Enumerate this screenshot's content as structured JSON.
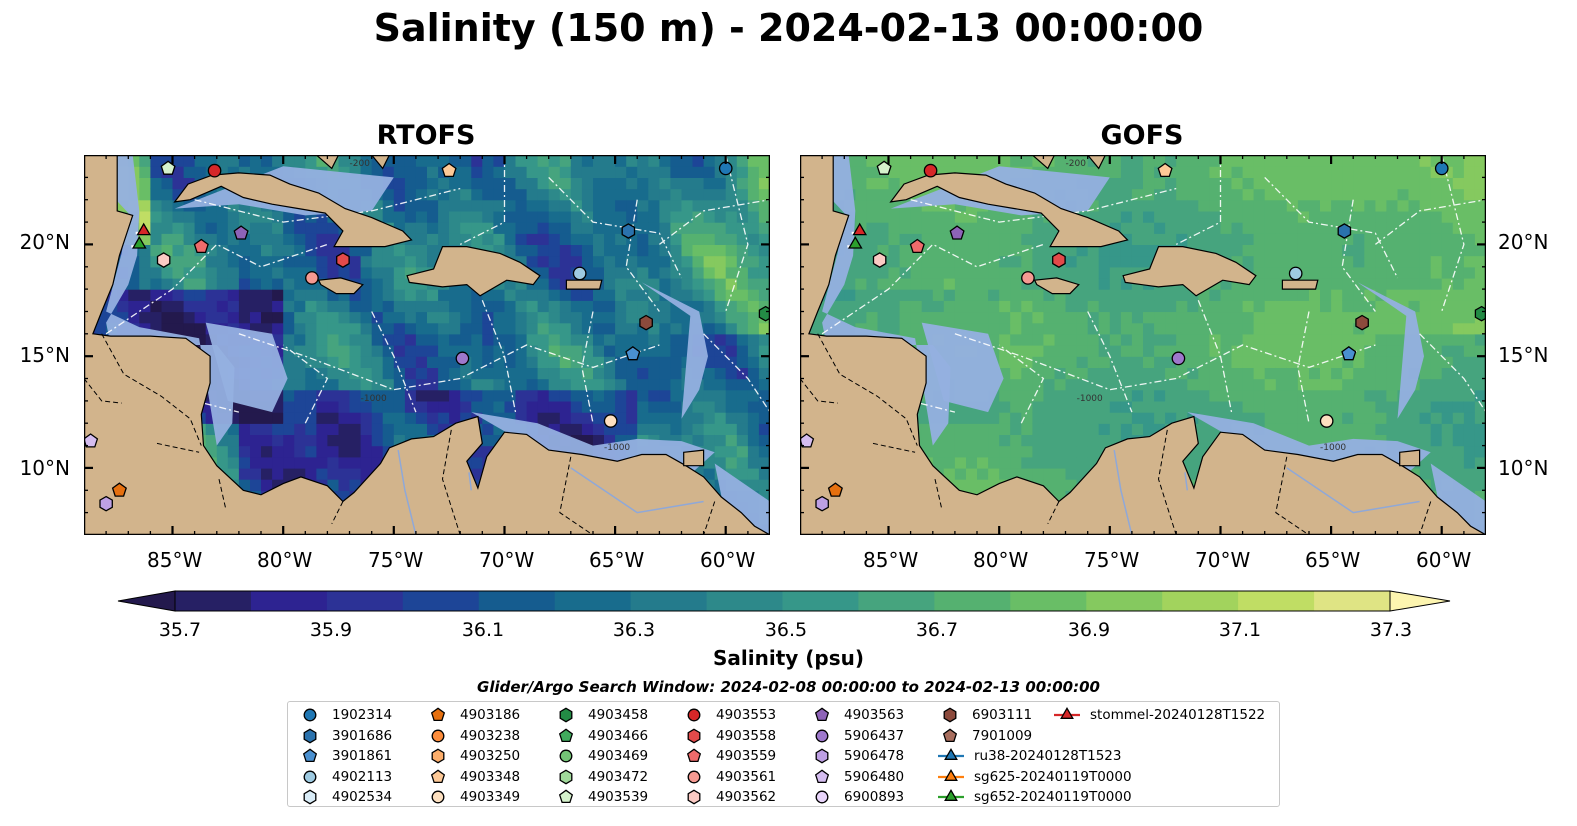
{
  "title": "Salinity (150 m) - 2024-02-13 00:00:00",
  "panels": [
    {
      "id": "rtofs",
      "title": "RTOFS"
    },
    {
      "id": "gofs",
      "title": "GOFS"
    }
  ],
  "map": {
    "lon_range": [
      -89,
      -58
    ],
    "lat_range": [
      7,
      24
    ],
    "x_ticks": [
      "85°W",
      "80°W",
      "75°W",
      "70°W",
      "65°W",
      "60°W"
    ],
    "x_tick_values": [
      -85,
      -80,
      -75,
      -70,
      -65,
      -60
    ],
    "y_ticks": [
      "20°N",
      "15°N",
      "10°N"
    ],
    "y_tick_values": [
      20,
      15,
      10
    ],
    "isobath_labels": [
      "-200",
      "-1000"
    ],
    "land_color": "#d2b48c",
    "shelf_color": "#95b0e0"
  },
  "colorbar": {
    "label": "Salinity (psu)",
    "tick_labels": [
      "35.7",
      "35.9",
      "36.1",
      "36.3",
      "36.5",
      "36.7",
      "36.9",
      "37.1",
      "37.3"
    ],
    "min": 35.7,
    "max": 37.3,
    "step": 0.1,
    "colors": [
      "#262064",
      "#2d2391",
      "#2c3296",
      "#1d4597",
      "#155c8f",
      "#186c8d",
      "#247b8c",
      "#2d898a",
      "#369789",
      "#46a47e",
      "#55b170",
      "#69be66",
      "#85c95f",
      "#a2d35d",
      "#c0dd64",
      "#dfe484"
    ],
    "under_color": "#23194d",
    "over_color": "#fdf5b0"
  },
  "search_window": "Glider/Argo Search Window: 2024-02-08 00:00:00 to 2024-02-13 00:00:00",
  "legend": [
    {
      "label": "1902314",
      "shape": "circle",
      "color": "#1f77b4"
    },
    {
      "label": "3901686",
      "shape": "hexagon",
      "color": "#2a72ad"
    },
    {
      "label": "3901861",
      "shape": "pentagon",
      "color": "#4a90d0"
    },
    {
      "label": "4902113",
      "shape": "circle",
      "color": "#9ecae1"
    },
    {
      "label": "4902534",
      "shape": "hexagon",
      "color": "#d9ecf7"
    },
    {
      "label": "4903186",
      "shape": "pentagon",
      "color": "#e6700f"
    },
    {
      "label": "4903238",
      "shape": "circle",
      "color": "#fd8d3c"
    },
    {
      "label": "4903250",
      "shape": "hexagon",
      "color": "#fdae6b"
    },
    {
      "label": "4903348",
      "shape": "pentagon",
      "color": "#fdc997"
    },
    {
      "label": "4903349",
      "shape": "circle",
      "color": "#fde0c0"
    },
    {
      "label": "4903458",
      "shape": "hexagon",
      "color": "#238b45"
    },
    {
      "label": "4903466",
      "shape": "pentagon",
      "color": "#41ab5d"
    },
    {
      "label": "4903469",
      "shape": "circle",
      "color": "#74c476"
    },
    {
      "label": "4903472",
      "shape": "hexagon",
      "color": "#a1d99b"
    },
    {
      "label": "4903539",
      "shape": "pentagon",
      "color": "#d5f2cc"
    },
    {
      "label": "4903553",
      "shape": "circle",
      "color": "#d62728"
    },
    {
      "label": "4903558",
      "shape": "hexagon",
      "color": "#e34a4a"
    },
    {
      "label": "4903559",
      "shape": "pentagon",
      "color": "#ef6b6b"
    },
    {
      "label": "4903561",
      "shape": "circle",
      "color": "#f59a92"
    },
    {
      "label": "4903562",
      "shape": "hexagon",
      "color": "#fbcbc4"
    },
    {
      "label": "4903563",
      "shape": "pentagon",
      "color": "#8e63b8"
    },
    {
      "label": "5906437",
      "shape": "circle",
      "color": "#9e78cc"
    },
    {
      "label": "5906478",
      "shape": "hexagon",
      "color": "#bea0e4"
    },
    {
      "label": "5906480",
      "shape": "pentagon",
      "color": "#d5bdf0"
    },
    {
      "label": "6900893",
      "shape": "circle",
      "color": "#e8d4fa"
    },
    {
      "label": "6903111",
      "shape": "hexagon",
      "color": "#8c4a3c"
    },
    {
      "label": "7901009",
      "shape": "pentagon",
      "color": "#a86e5e"
    },
    {
      "label": "ru38-20240128T1523",
      "shape": "triangle-line",
      "color": "#1f77b4"
    },
    {
      "label": "sg625-20240119T0000",
      "shape": "triangle-line",
      "color": "#ff7f0e"
    },
    {
      "label": "sg652-20240119T0000",
      "shape": "triangle-line",
      "color": "#2ca02c"
    },
    {
      "label": "stommel-20240128T1522",
      "shape": "triangle-line",
      "color": "#d62728"
    }
  ],
  "markers": [
    {
      "label": "1902314",
      "lon": -60.0,
      "lat": 23.4
    },
    {
      "label": "3901686",
      "lon": -64.4,
      "lat": 20.6
    },
    {
      "label": "3901861",
      "lon": -64.2,
      "lat": 15.1
    },
    {
      "label": "4902113",
      "lon": -66.6,
      "lat": 18.7
    },
    {
      "label": "4903186",
      "lon": -87.4,
      "lat": 9.0
    },
    {
      "label": "4903348",
      "lon": -72.5,
      "lat": 23.3
    },
    {
      "label": "4903349",
      "lon": -65.2,
      "lat": 12.1
    },
    {
      "label": "4903458",
      "lon": -58.2,
      "lat": 16.9
    },
    {
      "label": "4903539",
      "lon": -85.2,
      "lat": 23.4
    },
    {
      "label": "4903553",
      "lon": -83.1,
      "lat": 23.3
    },
    {
      "label": "4903558",
      "lon": -77.3,
      "lat": 19.3
    },
    {
      "label": "4903559",
      "lon": -83.7,
      "lat": 19.9
    },
    {
      "label": "4903561",
      "lon": -78.7,
      "lat": 18.5
    },
    {
      "label": "4903562",
      "lon": -85.4,
      "lat": 19.3
    },
    {
      "label": "4903563",
      "lon": -81.9,
      "lat": 20.5
    },
    {
      "label": "5906437",
      "lon": -71.9,
      "lat": 14.9
    },
    {
      "label": "5906478",
      "lon": -88.0,
      "lat": 8.4
    },
    {
      "label": "5906480",
      "lon": -88.7,
      "lat": 11.2
    },
    {
      "label": "6903111",
      "lon": -63.6,
      "lat": 16.5
    },
    {
      "label": "sg652-20240119T0000",
      "lon": -86.5,
      "lat": 20.0
    },
    {
      "label": "stommel-20240128T1522",
      "lon": -86.3,
      "lat": 20.6
    }
  ]
}
